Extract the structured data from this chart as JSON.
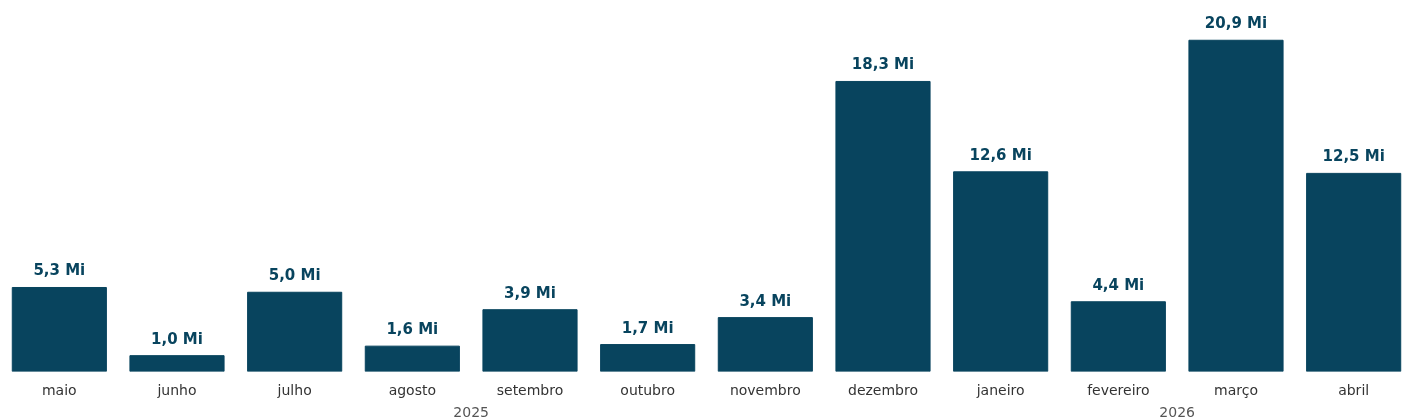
{
  "chart_data": {
    "type": "bar",
    "categories": [
      "maio",
      "junho",
      "julho",
      "agosto",
      "setembro",
      "outubro",
      "novembro",
      "dezembro",
      "janeiro",
      "fevereiro",
      "março",
      "abril"
    ],
    "values": [
      5.3,
      1.0,
      5.0,
      1.6,
      3.9,
      1.7,
      3.4,
      18.3,
      12.6,
      4.4,
      20.9,
      12.5
    ],
    "value_labels": [
      "5,3 Mi",
      "1,0 Mi",
      "5,0 Mi",
      "1,6 Mi",
      "3,9 Mi",
      "1,7 Mi",
      "3,4 Mi",
      "18,3 Mi",
      "12,6 Mi",
      "4,4 Mi",
      "20,9 Mi",
      "12,5 Mi"
    ],
    "color": "#08445e",
    "annotations": [
      "2025",
      "2026"
    ],
    "grid": false
  }
}
